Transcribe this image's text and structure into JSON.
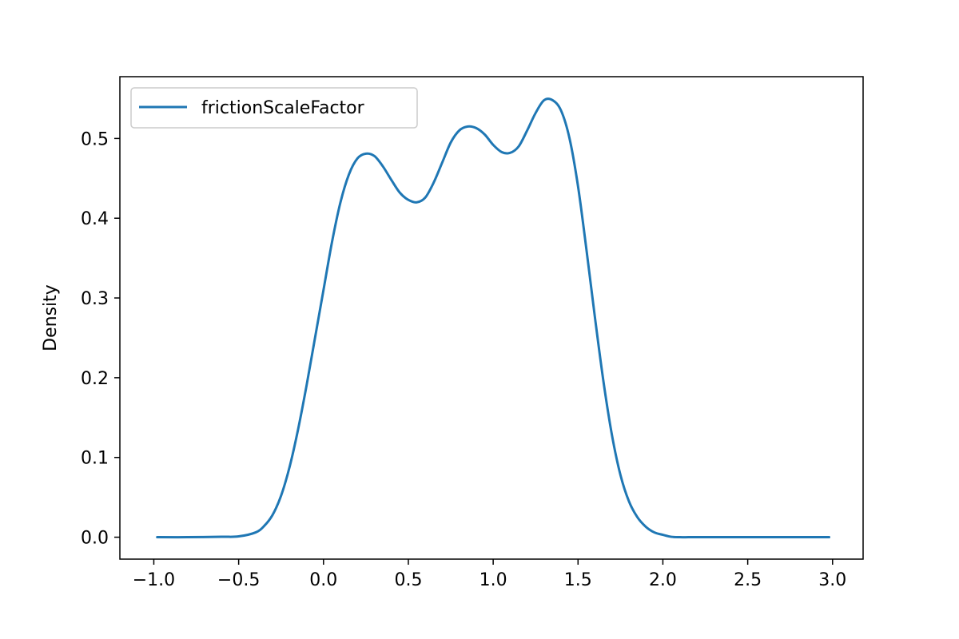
{
  "chart_data": {
    "type": "line",
    "title": "",
    "xlabel": "",
    "ylabel": "Density",
    "xlim": [
      -1.2,
      3.18
    ],
    "ylim": [
      -0.0275,
      0.5775
    ],
    "x_ticks": [
      -1.0,
      -0.5,
      0.0,
      0.5,
      1.0,
      1.5,
      2.0,
      2.5,
      3.0
    ],
    "x_tick_labels": [
      "−1.0",
      "−0.5",
      "0.0",
      "0.5",
      "1.0",
      "1.5",
      "2.0",
      "2.5",
      "3.0"
    ],
    "y_ticks": [
      0.0,
      0.1,
      0.2,
      0.3,
      0.4,
      0.5
    ],
    "y_tick_labels": [
      "0.0",
      "0.1",
      "0.2",
      "0.3",
      "0.4",
      "0.5"
    ],
    "grid": false,
    "legend_position": "top-left",
    "series": [
      {
        "name": "frictionScaleFactor",
        "color": "#1f77b4",
        "x": [
          -0.98,
          -0.8,
          -0.6,
          -0.5,
          -0.4,
          -0.35,
          -0.3,
          -0.25,
          -0.2,
          -0.15,
          -0.1,
          -0.05,
          0.0,
          0.05,
          0.1,
          0.15,
          0.2,
          0.25,
          0.3,
          0.35,
          0.4,
          0.45,
          0.5,
          0.55,
          0.6,
          0.65,
          0.7,
          0.75,
          0.8,
          0.85,
          0.9,
          0.95,
          1.0,
          1.05,
          1.1,
          1.15,
          1.2,
          1.25,
          1.3,
          1.35,
          1.4,
          1.45,
          1.5,
          1.55,
          1.6,
          1.65,
          1.7,
          1.75,
          1.8,
          1.85,
          1.9,
          1.95,
          2.0,
          2.05,
          2.1,
          2.15,
          2.2,
          2.25,
          2.3,
          2.35,
          2.4,
          2.5,
          2.6,
          2.8,
          2.98
        ],
        "y": [
          0.0,
          0.0,
          0.0005,
          0.001,
          0.006,
          0.014,
          0.028,
          0.052,
          0.088,
          0.135,
          0.19,
          0.25,
          0.31,
          0.37,
          0.42,
          0.455,
          0.475,
          0.481,
          0.478,
          0.465,
          0.448,
          0.432,
          0.423,
          0.42,
          0.426,
          0.445,
          0.47,
          0.495,
          0.51,
          0.515,
          0.513,
          0.505,
          0.492,
          0.483,
          0.482,
          0.49,
          0.51,
          0.532,
          0.548,
          0.548,
          0.535,
          0.5,
          0.44,
          0.36,
          0.275,
          0.195,
          0.128,
          0.078,
          0.045,
          0.025,
          0.013,
          0.006,
          0.003,
          0.0005,
          0.0,
          0.0,
          0.0,
          0.0,
          0.0,
          0.0,
          0.0,
          0.0,
          0.0,
          0.0,
          0.0
        ]
      }
    ]
  }
}
